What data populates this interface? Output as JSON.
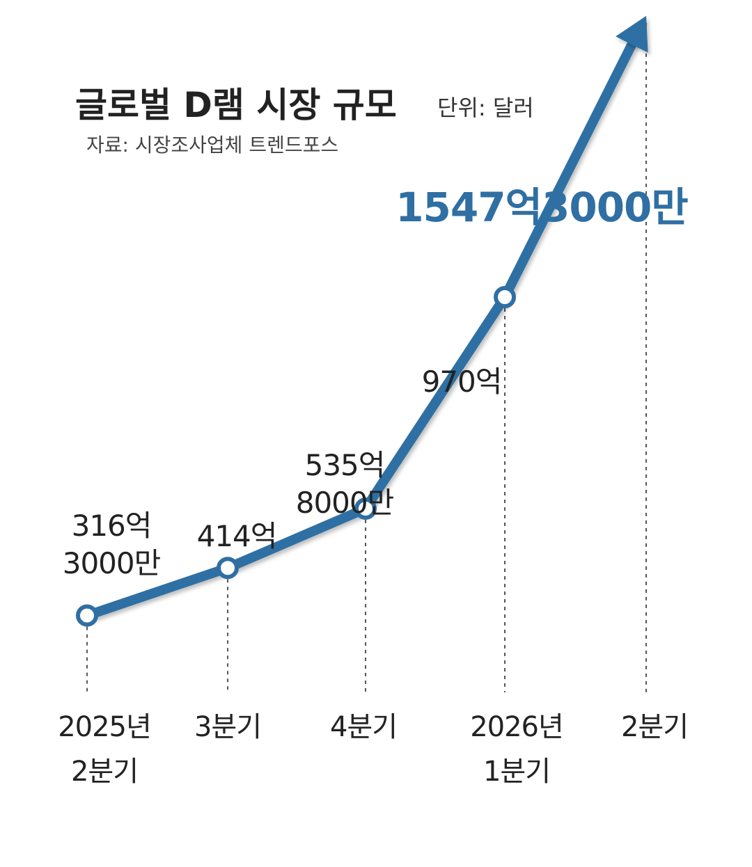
{
  "header": {
    "title": "글로벌 D램 시장 규모",
    "unit": "단위: 달러",
    "source": "자료: 시장조사업체 트렌드포스"
  },
  "chart_data": {
    "type": "line",
    "title": "글로벌 D램 시장 규모",
    "unit": "단위: 달러",
    "source": "자료: 시장조사업체 트렌드포스",
    "categories": [
      [
        "2025년",
        "2분기"
      ],
      [
        "3분기"
      ],
      [
        "4분기"
      ],
      [
        "2026년",
        "1분기"
      ],
      [
        "2분기"
      ]
    ],
    "values": [
      316.3,
      414,
      535.8,
      970,
      1547.3
    ],
    "value_unit": "억 달러",
    "data_labels": [
      [
        "316억",
        "3000만"
      ],
      [
        "414억"
      ],
      [
        "535억",
        "8000만"
      ],
      [
        "970억"
      ],
      [
        "1547억3000만"
      ]
    ],
    "last_point_highlight": true,
    "grid": false,
    "legend": "none",
    "colors": {
      "line": "#2f6fa3",
      "marker_fill": "#ffffff",
      "highlight_label": "#2f6fa3",
      "text": "#222222",
      "guide": "#555555"
    }
  }
}
